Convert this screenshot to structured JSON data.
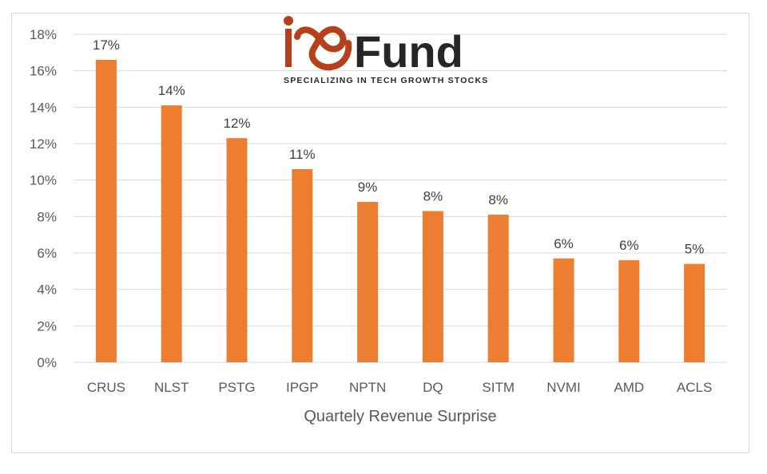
{
  "logo": {
    "name": "io Fund",
    "wordmark": "Fund",
    "tagline": "SPECIALIZING IN TECH GROWTH STOCKS",
    "brand_color": "#b5401c",
    "text_color": "#262626"
  },
  "chart_data": {
    "type": "bar",
    "title": "",
    "xlabel": "Quartely Revenue Surprise",
    "ylabel": "",
    "categories": [
      "CRUS",
      "NLST",
      "PSTG",
      "IPGP",
      "NPTN",
      "DQ",
      "SITM",
      "NVMI",
      "AMD",
      "ACLS"
    ],
    "values": [
      16.6,
      14.1,
      12.3,
      10.6,
      8.8,
      8.3,
      8.1,
      5.7,
      5.6,
      5.4
    ],
    "data_labels": [
      "17%",
      "14%",
      "12%",
      "11%",
      "9%",
      "8%",
      "8%",
      "6%",
      "6%",
      "5%"
    ],
    "ylim": [
      0,
      18
    ],
    "yticks": [
      0,
      2,
      4,
      6,
      8,
      10,
      12,
      14,
      16,
      18
    ],
    "ytick_labels": [
      "0%",
      "2%",
      "4%",
      "6%",
      "8%",
      "10%",
      "12%",
      "14%",
      "16%",
      "18%"
    ],
    "grid": true,
    "bar_color": "#ed7d31",
    "grid_color": "#d9d9d9"
  }
}
